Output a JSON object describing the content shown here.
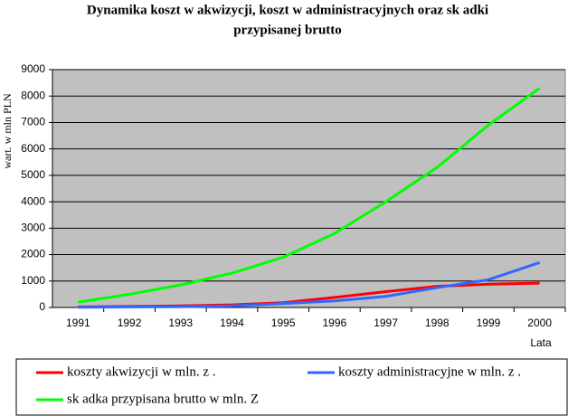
{
  "chart_data": {
    "type": "line",
    "title": [
      "Dynamika koszt  w akwizycji, koszt  w administracyjnych oraz sk adki",
      "przypisanej brutto"
    ],
    "y_label": "wart. w mln PLN",
    "x_label": "Lata",
    "categories": [
      "1991",
      "1992",
      "1993",
      "1994",
      "1995",
      "1996",
      "1997",
      "1998",
      "1999",
      "2000"
    ],
    "series": [
      {
        "name": "koszty akwizycji w mln. z .",
        "color": "#ff0000",
        "values": [
          20,
          40,
          60,
          100,
          180,
          380,
          600,
          800,
          880,
          920
        ]
      },
      {
        "name": "koszty administracyjne w mln. z .",
        "color": "#3366ff",
        "values": [
          10,
          20,
          30,
          60,
          150,
          250,
          420,
          750,
          1050,
          1700
        ]
      },
      {
        "name": "sk adka przypisana brutto w mln. Z",
        "color": "#00ff00",
        "values": [
          200,
          500,
          850,
          1300,
          1900,
          2800,
          4000,
          5300,
          6900,
          8300
        ]
      }
    ],
    "ylim": [
      0,
      9000
    ],
    "yticks": [
      0,
      1000,
      2000,
      3000,
      4000,
      5000,
      6000,
      7000,
      8000,
      9000
    ],
    "grid": true,
    "plot_background": "#c0c0c0",
    "legend_position": "bottom"
  }
}
